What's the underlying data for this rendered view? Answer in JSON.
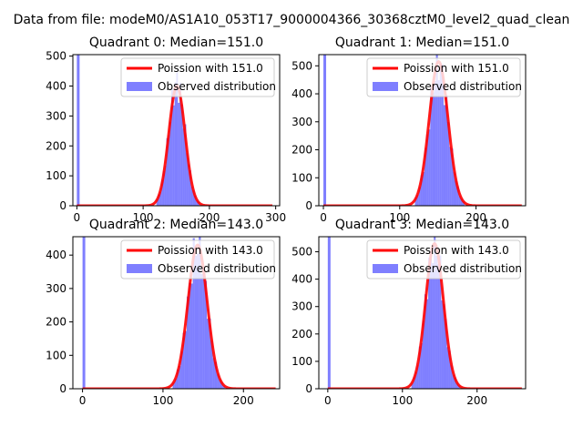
{
  "figure": {
    "suptitle": "Data from file: modeM0/AS1A10_053T17_9000004366_30368cztM0_level2_quad_clean"
  },
  "colors": {
    "line": "#ff0000",
    "hist": "#0000ff",
    "axes": "#000000"
  },
  "chart_data": [
    {
      "type": "bar",
      "title": "Quadrant 0: Median=151.0",
      "median": 151.0,
      "xlim": [
        -6,
        306
      ],
      "ylim": [
        0,
        505
      ],
      "xticks": [
        0,
        100,
        200,
        300
      ],
      "yticks": [
        0,
        100,
        200,
        300,
        400,
        500
      ],
      "spike": {
        "x": 0,
        "width": 3,
        "height": 505
      },
      "hist_peak": 410,
      "bins": {
        "start": 120,
        "end": 185,
        "width": 2.5
      },
      "poisson_peak": 400,
      "poisson_range": [
        0,
        295
      ],
      "legend": [
        "Poission with 151.0",
        "Observed distribution"
      ]
    },
    {
      "type": "bar",
      "title": "Quadrant 1: Median=151.0",
      "median": 151.0,
      "xlim": [
        -6,
        265
      ],
      "ylim": [
        0,
        540
      ],
      "xticks": [
        0,
        100,
        200
      ],
      "yticks": [
        0,
        100,
        200,
        300,
        400,
        500
      ],
      "spike": {
        "x": 0,
        "width": 3,
        "height": 540
      },
      "hist_peak": 510,
      "bins": {
        "start": 120,
        "end": 185,
        "width": 2.5
      },
      "poisson_peak": 515,
      "poisson_range": [
        0,
        260
      ],
      "legend": [
        "Poission with 151.0",
        "Observed distribution"
      ]
    },
    {
      "type": "bar",
      "title": "Quadrant 2: Median=143.0",
      "median": 143.0,
      "xlim": [
        -12,
        245
      ],
      "ylim": [
        0,
        455
      ],
      "xticks": [
        0,
        100,
        200
      ],
      "yticks": [
        0,
        100,
        200,
        300,
        400
      ],
      "spike": {
        "x": 0,
        "width": 3,
        "height": 455
      },
      "hist_peak": 430,
      "bins": {
        "start": 112,
        "end": 175,
        "width": 2.5
      },
      "poisson_peak": 430,
      "poisson_range": [
        0,
        240
      ],
      "legend": [
        "Poission with 143.0",
        "Observed distribution"
      ]
    },
    {
      "type": "bar",
      "title": "Quadrant 3: Median=143.0",
      "median": 143.0,
      "xlim": [
        -12,
        265
      ],
      "ylim": [
        0,
        555
      ],
      "xticks": [
        0,
        100,
        200
      ],
      "yticks": [
        0,
        100,
        200,
        300,
        400,
        500
      ],
      "spike": {
        "x": 0,
        "width": 3,
        "height": 555
      },
      "hist_peak": 530,
      "bins": {
        "start": 112,
        "end": 175,
        "width": 2.5
      },
      "poisson_peak": 530,
      "poisson_range": [
        0,
        260
      ],
      "legend": [
        "Poission with 143.0",
        "Observed distribution"
      ]
    }
  ]
}
